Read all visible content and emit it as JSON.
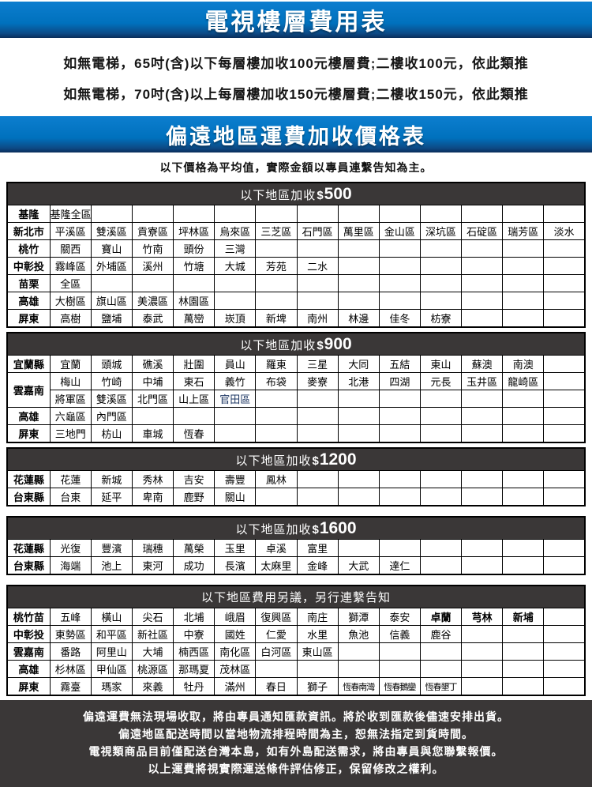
{
  "colors": {
    "banner_blue": "#0071bd",
    "banner_blue_dark": "#0a2d5a",
    "bar_dark": "#3a3737",
    "accent_cell_blue": "#1f3864",
    "page_bg": "#ffffff"
  },
  "banner_top": {
    "title": "電視樓層費用表"
  },
  "elevator": {
    "lines": [
      "如無電梯，65吋(含)以下每層樓加收100元樓層費;二樓收100元，依此類推",
      "如無電梯，70吋(含)以上每層樓加收150元樓層費;二樓收150元，依此類推"
    ]
  },
  "banner_remote": {
    "title": "偏遠地區運費加收價格表"
  },
  "note": {
    "text": "以下價格為平均值，實際金額以專員連繫告知為主。"
  },
  "tables": [
    {
      "name": "surcharge-500",
      "header": {
        "prefix": "以下地區加收",
        "amount": "$500"
      },
      "data_columns": 13,
      "rows": [
        {
          "label": "基隆",
          "cells": [
            "基隆全區"
          ]
        },
        {
          "label": "新北市",
          "cells": [
            "平溪區",
            "雙溪區",
            "貢寮區",
            "坪林區",
            "烏來區",
            "三芝區",
            "石門區",
            "萬里區",
            "金山區",
            "深坑區",
            "石碇區",
            "瑞芳區",
            "淡水"
          ]
        },
        {
          "label": "桃竹",
          "cells": [
            "關西",
            "寶山",
            "竹南",
            "頭份",
            "三灣"
          ]
        },
        {
          "label": "中彰投",
          "cells": [
            "霧峰區",
            "外埔區",
            "溪州",
            "竹塘",
            "大城",
            "芳苑",
            "二水"
          ]
        },
        {
          "label": "苗栗",
          "cells": [
            "全區"
          ]
        },
        {
          "label": "高雄",
          "cells": [
            "大樹區",
            "旗山區",
            "美濃區",
            "林園區"
          ]
        },
        {
          "label": "屏東",
          "cells": [
            "高樹",
            "鹽埔",
            "泰武",
            "萬巒",
            "崁頂",
            "新埤",
            "南州",
            "林邊",
            "佳冬",
            "枋寮"
          ]
        }
      ]
    },
    {
      "name": "surcharge-900",
      "header": {
        "prefix": "以下地區加收",
        "amount": "$900"
      },
      "data_columns": 13,
      "rows": [
        {
          "label": "宜蘭縣",
          "cells": [
            "宜蘭",
            "頭城",
            "礁溪",
            "壯圍",
            "員山",
            "羅東",
            "三星",
            "大同",
            "五結",
            "東山",
            "蘇澳",
            "南澳"
          ]
        },
        {
          "label": "雲嘉南",
          "rowspan": 2,
          "cells": [
            "梅山",
            "竹崎",
            "中埔",
            "東石",
            "義竹",
            "布袋",
            "麥寮",
            "北港",
            "四湖",
            "元長",
            "玉井區",
            "龍崎區"
          ]
        },
        {
          "label": null,
          "cells": [
            "將軍區",
            "雙溪區",
            "北門區",
            "山上區",
            {
              "text": "官田區",
              "style": "blue"
            }
          ]
        },
        {
          "label": "高雄",
          "cells": [
            "六龜區",
            "內門區"
          ]
        },
        {
          "label": "屏東",
          "cells": [
            "三地門",
            "枋山",
            "車城",
            "恆春"
          ]
        }
      ]
    },
    {
      "name": "surcharge-1200",
      "header": {
        "prefix": "以下地區加收",
        "amount": "$1200"
      },
      "data_columns": 13,
      "rows": [
        {
          "label": "花蓮縣",
          "cells": [
            "花蓮",
            "新城",
            "秀林",
            "吉安",
            "壽豐",
            "鳳林"
          ]
        },
        {
          "label": "台東縣",
          "cells": [
            "台東",
            "延平",
            "卑南",
            "鹿野",
            "關山"
          ]
        }
      ]
    },
    {
      "name": "surcharge-1600",
      "header": {
        "prefix": "以下地區加收",
        "amount": "$1600"
      },
      "data_columns": 13,
      "rows": [
        {
          "label": "花蓮縣",
          "cells": [
            "光復",
            "豐濱",
            "瑞穗",
            "萬榮",
            "玉里",
            "卓溪",
            "富里"
          ]
        },
        {
          "label": "台東縣",
          "cells": [
            "海端",
            "池上",
            "東河",
            "成功",
            "長濱",
            "太麻里",
            "金峰",
            "大武",
            "達仁"
          ]
        }
      ]
    },
    {
      "name": "negotiated-fee",
      "header": {
        "prefix": "以下地區費用另議，另行連繫告知",
        "amount": ""
      },
      "data_columns": 13,
      "rows": [
        {
          "label": "桃竹苗",
          "cells": [
            "五峰",
            "橫山",
            "尖石",
            "北埔",
            "峨眉",
            "復興區",
            "南庄",
            "獅潭",
            "泰安",
            {
              "text": "卓蘭",
              "style": "bold"
            },
            {
              "text": "芎林",
              "style": "bold"
            },
            {
              "text": "新埔",
              "style": "bold"
            }
          ]
        },
        {
          "label": "中彰投",
          "cells": [
            "東勢區",
            "和平區",
            "新社區",
            "中寮",
            "國姓",
            "仁愛",
            "水里",
            "魚池",
            "信義",
            "鹿谷"
          ]
        },
        {
          "label": "雲嘉南",
          "cells": [
            "番路",
            "阿里山",
            "大埔",
            "楠西區",
            "南化區",
            "白河區",
            "東山區"
          ]
        },
        {
          "label": "高雄",
          "cells": [
            "杉林區",
            "甲仙區",
            "桃源區",
            "那瑪夏",
            "茂林區"
          ]
        },
        {
          "label": "屏東",
          "cells": [
            "霧臺",
            "瑪家",
            "來義",
            "牡丹",
            "滿州",
            "春日",
            "獅子",
            {
              "text": "恆春南灣",
              "style": "small"
            },
            {
              "text": "恆春鵝鑾",
              "style": "small"
            },
            {
              "text": "恆春墾丁",
              "style": "small"
            }
          ]
        }
      ]
    }
  ],
  "footer": {
    "lines": [
      "偏遠運費無法現場收取，將由專員通知匯款資訊。將於收到匯款後儘速安排出貨。",
      "偏遠地區配送時間以當地物流排程時間為主，恕無法指定到貨時間。",
      "電視類商品目前僅配送台灣本島，如有外島配送需求，將由專員與您聯繫報價。",
      "以上運費將視實際運送條件評估修正，保留修改之權利。"
    ]
  }
}
